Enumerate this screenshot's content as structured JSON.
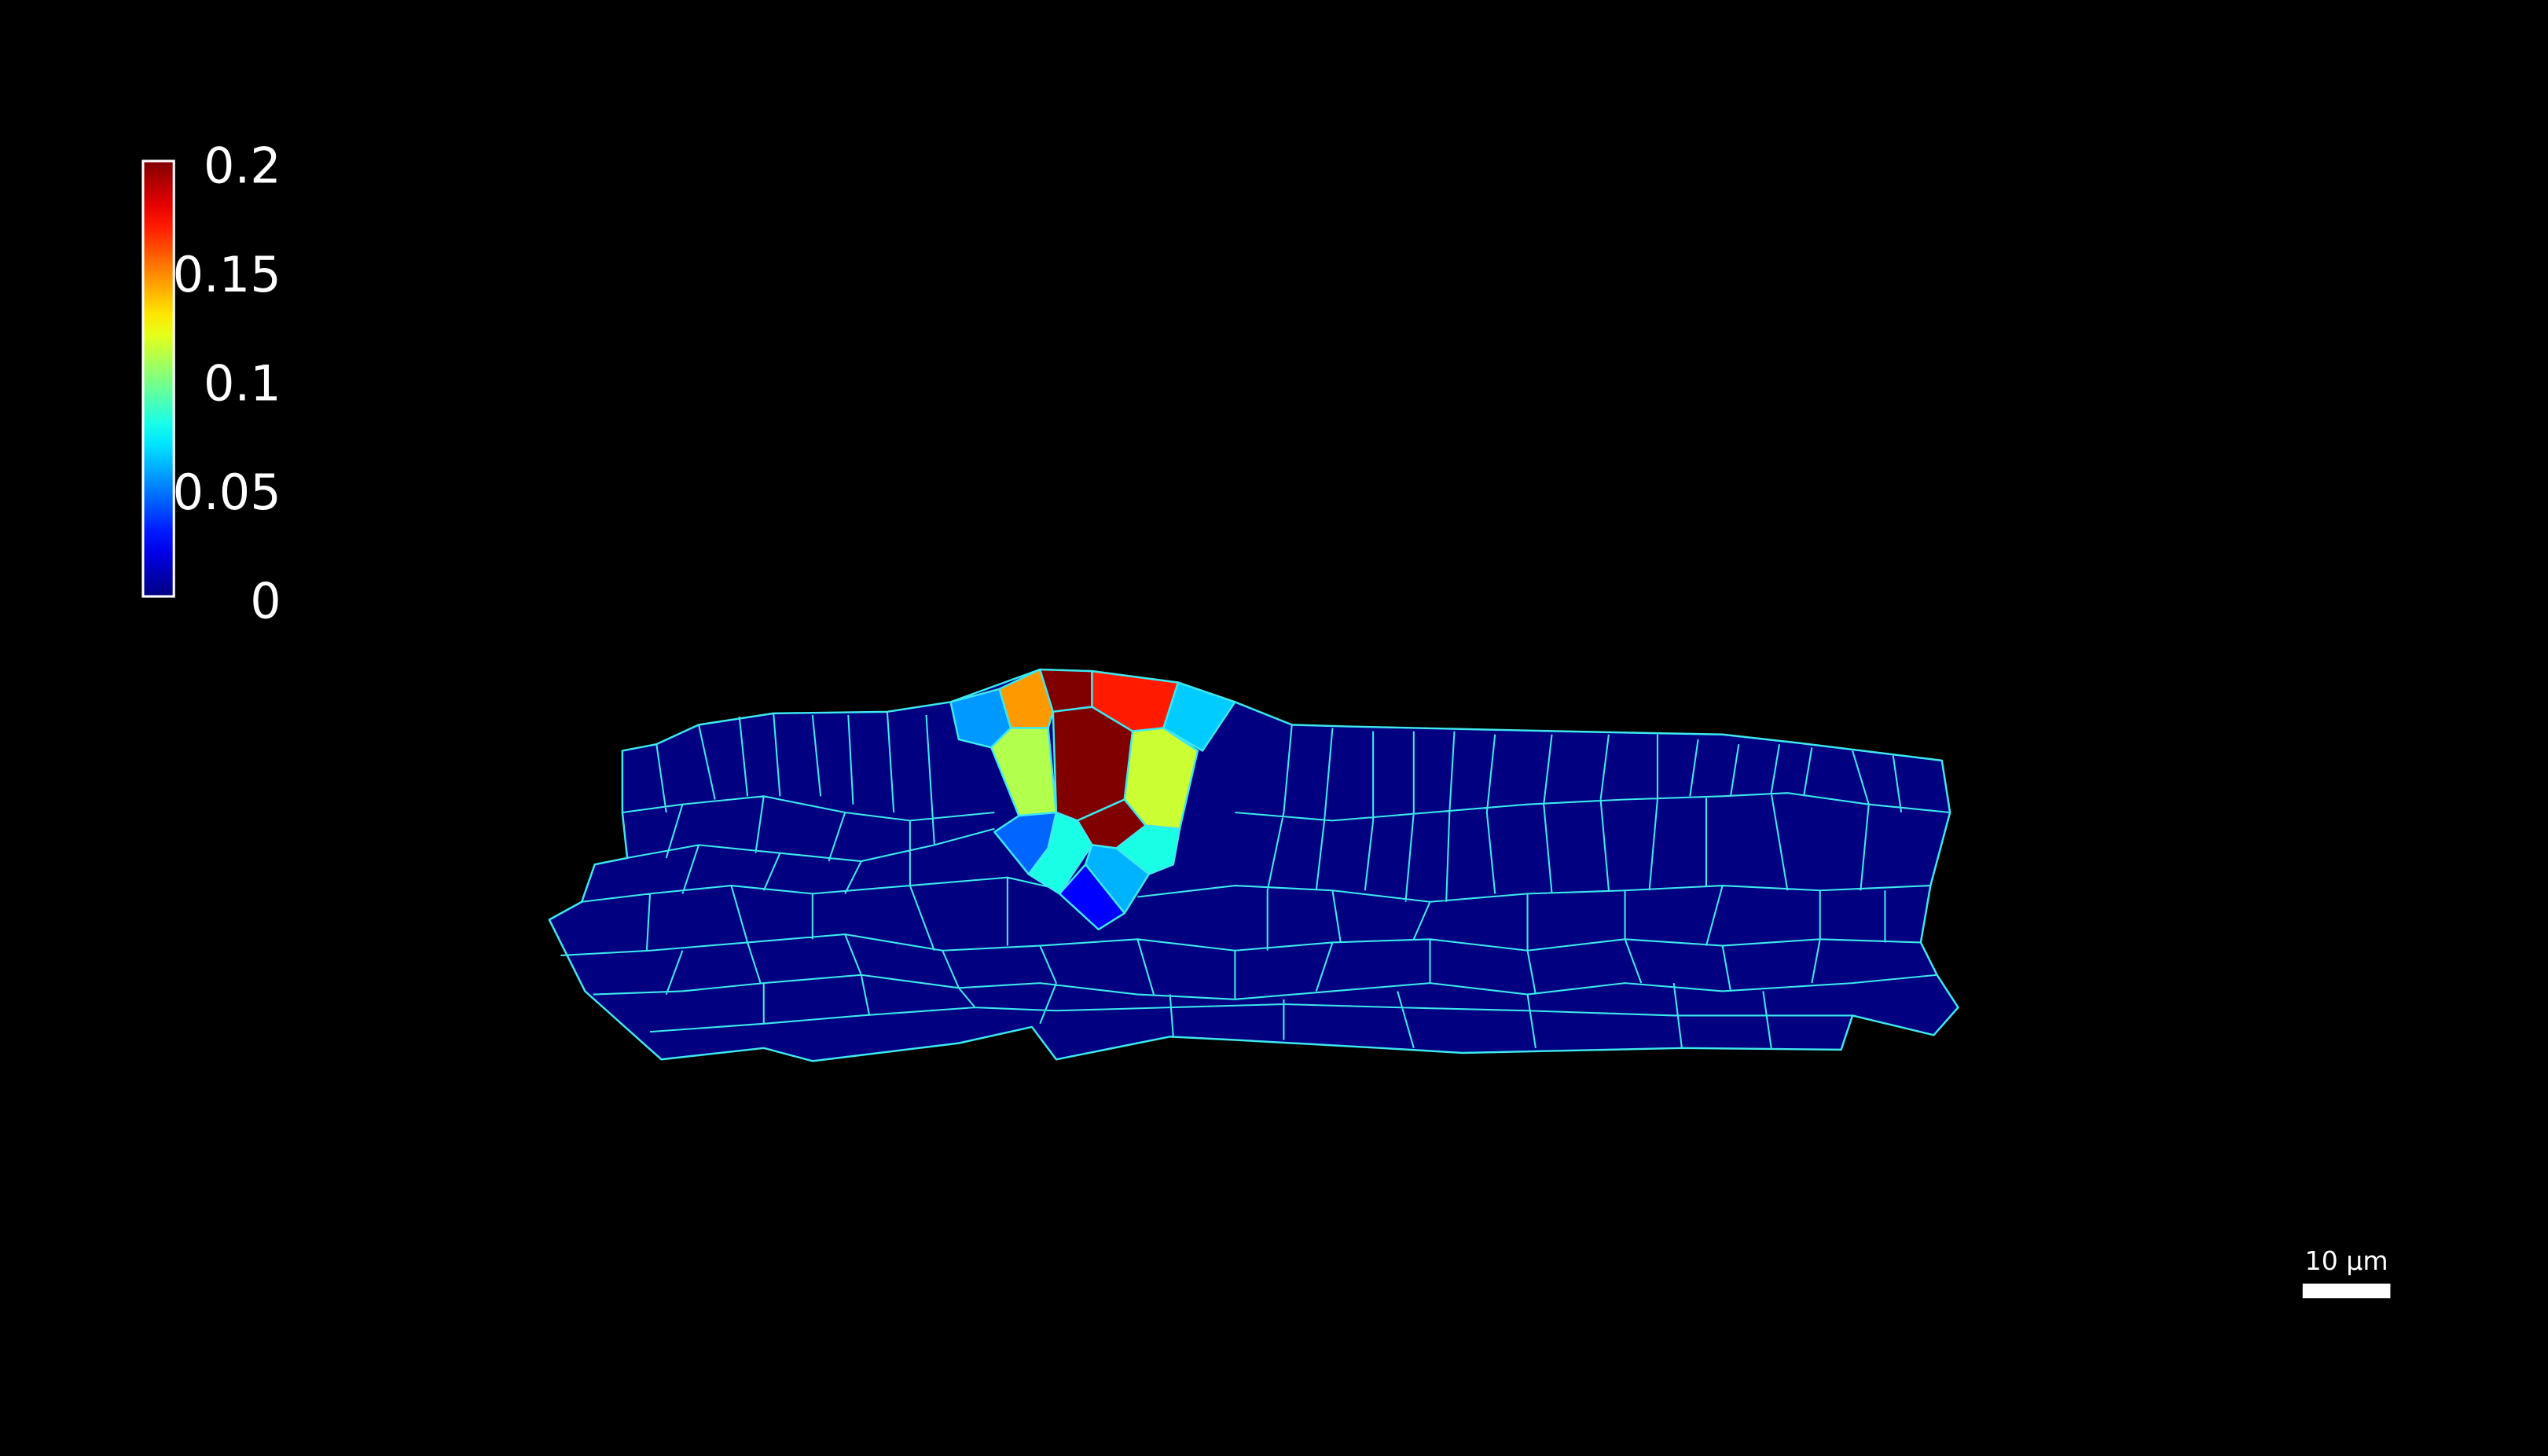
{
  "colorbar": {
    "lim": [
      0,
      0.2
    ],
    "ticks": [
      0.2,
      0.15,
      0.1,
      0.05,
      0
    ],
    "colormap": "jet"
  },
  "cells": {
    "values": [
      0.055,
      0.145,
      0.2,
      0.17,
      0.065,
      0.11,
      0.2,
      0.115,
      0.2,
      0.045,
      0.08,
      0.08,
      0.06,
      0.025,
      0
    ]
  },
  "scale_bar": {
    "label": "10 μm"
  }
}
